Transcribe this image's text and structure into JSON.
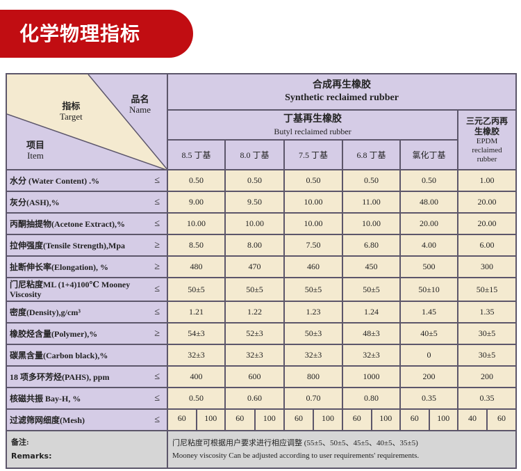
{
  "title": "化学物理指标",
  "header": {
    "name_cn": "品名",
    "name_en": "Name",
    "target_cn": "指标",
    "target_en": "Target",
    "item_cn": "项目",
    "item_en": "Item",
    "synthetic_cn": "合成再生橡胶",
    "synthetic_en": "Synthetic reclaimed rubber",
    "butyl_cn": "丁基再生橡胶",
    "butyl_en": "Butyl reclaimed rubber",
    "epdm_cn": "三元乙丙再生橡胶",
    "epdm_en": "EPDM reclaimed rubber",
    "grades": [
      "8.5 丁基",
      "8.0 丁基",
      "7.5 丁基",
      "6.8 丁基",
      "氯化丁基"
    ]
  },
  "rows": [
    {
      "label": "水分 (Water Content) .%",
      "sign": "≤",
      "values": [
        "0.50",
        "0.50",
        "0.50",
        "0.50",
        "0.50",
        "1.00"
      ]
    },
    {
      "label": "灰分(ASH),%",
      "sign": "≤",
      "values": [
        "9.00",
        "9.50",
        "10.00",
        "11.00",
        "48.00",
        "20.00"
      ]
    },
    {
      "label": "丙酮抽提物(Acetone Extract),%",
      "sign": "≤",
      "values": [
        "10.00",
        "10.00",
        "10.00",
        "10.00",
        "20.00",
        "20.00"
      ]
    },
    {
      "label": "拉伸强度(Tensile Strength),Mpa",
      "sign": "≥",
      "values": [
        "8.50",
        "8.00",
        "7.50",
        "6.80",
        "4.00",
        "6.00"
      ]
    },
    {
      "label": "扯断伸长率(Elongation), %",
      "sign": "≥",
      "values": [
        "480",
        "470",
        "460",
        "450",
        "500",
        "300"
      ]
    },
    {
      "label": "门尼粘度ML (1+4)100℃ Mooney Viscosity",
      "sign": "≤",
      "values": [
        "50±5",
        "50±5",
        "50±5",
        "50±5",
        "50±10",
        "50±15"
      ]
    },
    {
      "label": "密度(Density),g/cm³",
      "sign": "≤",
      "values": [
        "1.21",
        "1.22",
        "1.23",
        "1.24",
        "1.45",
        "1.35"
      ]
    },
    {
      "label": "橡胶烃含量(Polymer),%",
      "sign": "≥",
      "values": [
        "54±3",
        "52±3",
        "50±3",
        "48±3",
        "40±5",
        "30±5"
      ]
    },
    {
      "label": "碳黑含量(Carbon black),%",
      "sign": "",
      "values": [
        "32±3",
        "32±3",
        "32±3",
        "32±3",
        "0",
        "30±5"
      ]
    },
    {
      "label": "18 项多环芳烃(PAHS), ppm",
      "sign": "≤",
      "values": [
        "400",
        "600",
        "800",
        "1000",
        "200",
        "200"
      ]
    },
    {
      "label": "核磁共振 Bay-H, %",
      "sign": "≤",
      "values": [
        "0.50",
        "0.60",
        "0.70",
        "0.80",
        "0.35",
        "0.35"
      ]
    }
  ],
  "mesh": {
    "label": "过滤筛网细度(Mesh)",
    "sign": "≤",
    "values": [
      [
        "60",
        "100"
      ],
      [
        "60",
        "100"
      ],
      [
        "60",
        "100"
      ],
      [
        "60",
        "100"
      ],
      [
        "60",
        "100"
      ],
      [
        "40",
        "60"
      ]
    ]
  },
  "remarks": {
    "label_cn": "备注:",
    "label_en": "Remarks:",
    "text_cn": "门尼粘度可根据用户要求进行相应调整 (55±5、50±5、45±5、40±5、35±5)",
    "text_en": "Mooney viscosity Can be adjusted according to user requirements' requirements."
  }
}
